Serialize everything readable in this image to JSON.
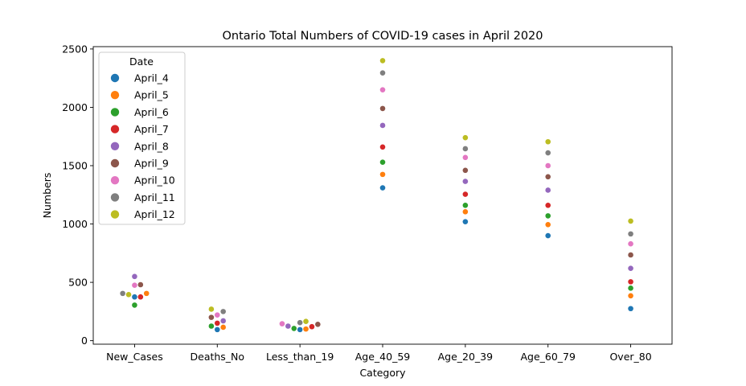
{
  "chart_data": {
    "type": "scatter",
    "title": "Ontario Total Numbers of COVID-19 cases in April 2020",
    "xlabel": "Category",
    "ylabel": "Numbers",
    "categories": [
      "New_Cases",
      "Deaths_No",
      "Less_than_19",
      "Age_40_59",
      "Age_20_39",
      "Age_60_79",
      "Over_80"
    ],
    "ylim": [
      -30,
      2520
    ],
    "yticks": [
      0,
      500,
      1000,
      1500,
      2000,
      2500
    ],
    "legend": {
      "title": "Date",
      "placement": "top-left"
    },
    "grid": false,
    "series": [
      {
        "name": "April_4",
        "color": "#1f77b4",
        "values": [
          375,
          95,
          95,
          1310,
          1020,
          900,
          275
        ]
      },
      {
        "name": "April_5",
        "color": "#ff7f0e",
        "values": [
          405,
          115,
          100,
          1425,
          1105,
          995,
          385
        ]
      },
      {
        "name": "April_6",
        "color": "#2ca02c",
        "values": [
          305,
          125,
          105,
          1530,
          1160,
          1070,
          450
        ]
      },
      {
        "name": "April_7",
        "color": "#d62728",
        "values": [
          375,
          150,
          120,
          1660,
          1255,
          1160,
          505
        ]
      },
      {
        "name": "April_8",
        "color": "#9467bd",
        "values": [
          550,
          170,
          125,
          1845,
          1365,
          1290,
          620
        ]
      },
      {
        "name": "April_9",
        "color": "#8c564b",
        "values": [
          480,
          200,
          140,
          1990,
          1460,
          1405,
          735
        ]
      },
      {
        "name": "April_10",
        "color": "#e377c2",
        "values": [
          475,
          220,
          145,
          2150,
          1570,
          1500,
          830
        ]
      },
      {
        "name": "April_11",
        "color": "#7f7f7f",
        "values": [
          405,
          250,
          155,
          2295,
          1645,
          1610,
          915
        ]
      },
      {
        "name": "April_12",
        "color": "#bcbd22",
        "values": [
          395,
          270,
          165,
          2400,
          1740,
          1705,
          1025
        ]
      }
    ]
  }
}
